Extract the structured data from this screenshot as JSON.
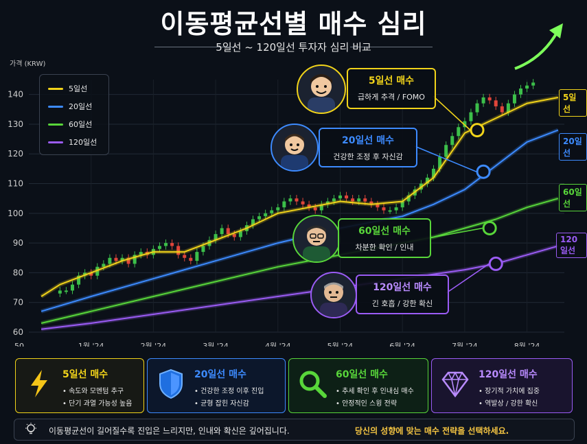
{
  "title": "이동평균선별 매수 심리",
  "subtitle": "5일선 ~ 120일선 투자자 심리 비교",
  "chart_data": {
    "type": "line",
    "ylabel": "가격 (KRW)",
    "ylim": [
      60,
      145
    ],
    "yticks": [
      60,
      70,
      80,
      90,
      100,
      110,
      120,
      130,
      140
    ],
    "xtick_labels": [
      "50",
      "1월 '24",
      "2월 '24",
      "3월 '24",
      "4월 '24",
      "5월 '24",
      "6월 '24",
      "7월 '24",
      "8월 '24"
    ],
    "xtick_pos": [
      0,
      1,
      2,
      3,
      4,
      5,
      6,
      7,
      8
    ],
    "xlim": [
      0,
      8.6
    ],
    "grid": true,
    "legend_position": "top-left",
    "candles": [
      [
        0.5,
        74
      ],
      [
        0.6,
        74
      ],
      [
        0.7,
        76
      ],
      [
        0.8,
        79
      ],
      [
        0.9,
        80
      ],
      [
        1.0,
        79
      ],
      [
        1.1,
        82
      ],
      [
        1.2,
        83
      ],
      [
        1.3,
        85
      ],
      [
        1.4,
        84
      ],
      [
        1.5,
        85
      ],
      [
        1.6,
        83
      ],
      [
        1.7,
        86
      ],
      [
        1.8,
        87
      ],
      [
        1.9,
        86
      ],
      [
        2.0,
        88
      ],
      [
        2.1,
        89
      ],
      [
        2.2,
        90
      ],
      [
        2.3,
        89
      ],
      [
        2.4,
        86
      ],
      [
        2.5,
        85
      ],
      [
        2.6,
        84
      ],
      [
        2.7,
        87
      ],
      [
        2.8,
        89
      ],
      [
        2.9,
        91
      ],
      [
        3.0,
        93
      ],
      [
        3.1,
        95
      ],
      [
        3.2,
        93
      ],
      [
        3.3,
        92
      ],
      [
        3.4,
        94
      ],
      [
        3.5,
        96
      ],
      [
        3.6,
        98
      ],
      [
        3.7,
        99
      ],
      [
        3.8,
        100
      ],
      [
        3.9,
        101
      ],
      [
        4.0,
        102
      ],
      [
        4.1,
        104
      ],
      [
        4.2,
        105
      ],
      [
        4.3,
        104
      ],
      [
        4.4,
        103
      ],
      [
        4.5,
        102
      ],
      [
        4.6,
        101
      ],
      [
        4.7,
        103
      ],
      [
        4.8,
        104
      ],
      [
        4.9,
        105
      ],
      [
        5.0,
        106
      ],
      [
        5.1,
        105
      ],
      [
        5.2,
        104
      ],
      [
        5.3,
        105
      ],
      [
        5.4,
        104
      ],
      [
        5.5,
        103
      ],
      [
        5.6,
        102
      ],
      [
        5.7,
        101
      ],
      [
        5.8,
        101
      ],
      [
        5.9,
        102
      ],
      [
        6.0,
        104
      ],
      [
        6.1,
        106
      ],
      [
        6.2,
        108
      ],
      [
        6.3,
        110
      ],
      [
        6.4,
        112
      ],
      [
        6.5,
        115
      ],
      [
        6.6,
        119
      ],
      [
        6.7,
        123
      ],
      [
        6.8,
        126
      ],
      [
        6.9,
        129
      ],
      [
        7.0,
        131
      ],
      [
        7.1,
        134
      ],
      [
        7.2,
        137
      ],
      [
        7.3,
        139
      ],
      [
        7.4,
        138
      ],
      [
        7.5,
        136
      ],
      [
        7.6,
        134
      ],
      [
        7.7,
        137
      ],
      [
        7.8,
        140
      ],
      [
        7.9,
        142
      ],
      [
        8.0,
        143
      ],
      [
        8.1,
        144
      ]
    ],
    "series": [
      {
        "name": "5일선",
        "color": "#f2d41a",
        "x": [
          0.2,
          0.5,
          1.0,
          1.5,
          2.0,
          2.5,
          3.0,
          3.5,
          4.0,
          4.5,
          5.0,
          5.5,
          6.0,
          6.5,
          7.0,
          7.3,
          7.6,
          8.0,
          8.5
        ],
        "values": [
          72,
          76,
          80,
          84,
          87,
          87,
          91,
          95,
          100,
          102,
          104,
          103,
          104,
          112,
          127,
          130,
          133,
          137,
          139
        ]
      },
      {
        "name": "20일선",
        "color": "#3d8bff",
        "x": [
          0.2,
          1.0,
          2.0,
          3.0,
          4.0,
          5.0,
          5.5,
          6.0,
          6.5,
          7.0,
          7.5,
          8.0,
          8.5
        ],
        "values": [
          67,
          72,
          78,
          84,
          90,
          95,
          97,
          99,
          103,
          108,
          116,
          124,
          128
        ]
      },
      {
        "name": "60일선",
        "color": "#58d63a",
        "x": [
          0.2,
          1.0,
          2.0,
          3.0,
          4.0,
          5.0,
          6.0,
          6.5,
          7.0,
          7.5,
          8.0,
          8.5
        ],
        "values": [
          63,
          67,
          72,
          77,
          82,
          86,
          90,
          92,
          95,
          98,
          102,
          105
        ]
      },
      {
        "name": "120일선",
        "color": "#9b5cf5",
        "x": [
          0.2,
          1.0,
          2.0,
          3.0,
          4.0,
          5.0,
          6.0,
          7.0,
          7.5,
          8.0,
          8.5
        ],
        "values": [
          61,
          63,
          66,
          69,
          72,
          75,
          78,
          81,
          83,
          86,
          89
        ]
      }
    ],
    "markers": [
      {
        "series": "5일선",
        "x": 7.2,
        "y": 128
      },
      {
        "series": "20일선",
        "x": 7.3,
        "y": 114
      },
      {
        "series": "60일선",
        "x": 7.4,
        "y": 95
      },
      {
        "series": "120일선",
        "x": 7.5,
        "y": 83
      }
    ],
    "end_tags": [
      "5일선",
      "20일선",
      "60일선",
      "120일선"
    ]
  },
  "legend": [
    {
      "label": "5일선",
      "color": "#f2d41a"
    },
    {
      "label": "20일선",
      "color": "#3d8bff"
    },
    {
      "label": "60일선",
      "color": "#58d63a"
    },
    {
      "label": "120일선",
      "color": "#9b5cf5"
    }
  ],
  "callouts": [
    {
      "title": "5일선 매수",
      "desc": "급하게 추격 / FOMO",
      "color": "#f2d41a"
    },
    {
      "title": "20일선 매수",
      "desc": "건강한 조정 후 자신감",
      "color": "#3d8bff"
    },
    {
      "title": "60일선 매수",
      "desc": "차분한 확인 / 인내",
      "color": "#58d63a"
    },
    {
      "title": "120일선 매수",
      "desc": "긴 호흡 / 강한 확신",
      "color": "#9b5cf5"
    }
  ],
  "cards": [
    {
      "title": "5일선 매수",
      "l1": "• 속도와 모멘텀 추구",
      "l2": "• 단기 과열 가능성 높음",
      "color": "#f2d41a",
      "icon": "lightning-icon"
    },
    {
      "title": "20일선 매수",
      "l1": "• 건강한 조정 이후 진입",
      "l2": "• 균형 잡힌 자신감",
      "color": "#3d8bff",
      "icon": "shield-icon"
    },
    {
      "title": "60일선 매수",
      "l1": "• 추세 확인 후 인내심 매수",
      "l2": "• 안정적인 스윙 전략",
      "color": "#58d63a",
      "icon": "magnifier-icon"
    },
    {
      "title": "120일선 매수",
      "l1": "• 장기적 가치에 집중",
      "l2": "• 역발상 / 강한 확신",
      "color": "#9b5cf5",
      "icon": "diamond-icon"
    }
  ],
  "footer": {
    "text1": "이동평균선이 길어질수록 진입은 느리지만, 인내와 확신은 깊어집니다.",
    "text2": "당신의 성향에 맞는 매수 전략을 선택하세요.",
    "icon": "lightbulb-icon"
  }
}
